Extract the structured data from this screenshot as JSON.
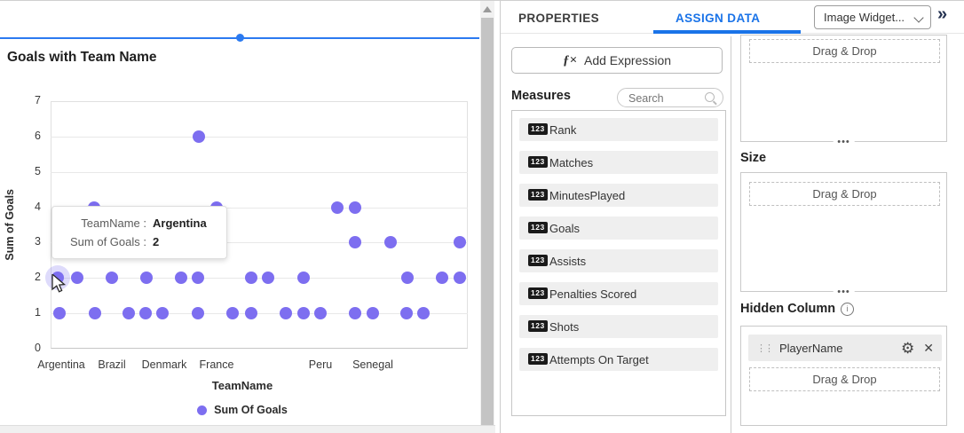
{
  "colors": {
    "accent_blue": "#1a73e8",
    "selection_blue": "#2b7af0",
    "point_purple": "#7d6ef0"
  },
  "chart_data": {
    "type": "scatter",
    "title": "Goals with Team Name",
    "xlabel": "TeamName",
    "ylabel": "Sum of Goals",
    "ylim": [
      0,
      7
    ],
    "yticks": [
      0,
      1,
      2,
      3,
      4,
      5,
      6,
      7
    ],
    "grid": "horizontal",
    "legend_position": "bottom",
    "legend": [
      {
        "label": "Sum Of Goals",
        "color": "#7d6ef0"
      }
    ],
    "x_axis_labels": [
      {
        "label": "Argentina",
        "px": 12
      },
      {
        "label": "Brazil",
        "px": 69
      },
      {
        "label": "Denmark",
        "px": 128
      },
      {
        "label": "France",
        "px": 187
      },
      {
        "label": "Peru",
        "px": 304
      },
      {
        "label": "Senegal",
        "px": 363
      }
    ],
    "points": [
      {
        "px": 167,
        "y": 6
      },
      {
        "px": 49,
        "y": 4
      },
      {
        "px": 187,
        "y": 4
      },
      {
        "px": 323,
        "y": 4
      },
      {
        "px": 343,
        "y": 4
      },
      {
        "px": 343,
        "y": 3
      },
      {
        "px": 383,
        "y": 3
      },
      {
        "px": 461,
        "y": 3
      },
      {
        "px": 8,
        "y": 2,
        "hovered": true
      },
      {
        "px": 30,
        "y": 2
      },
      {
        "px": 69,
        "y": 2
      },
      {
        "px": 108,
        "y": 2
      },
      {
        "px": 147,
        "y": 2
      },
      {
        "px": 166,
        "y": 2
      },
      {
        "px": 226,
        "y": 2
      },
      {
        "px": 245,
        "y": 2
      },
      {
        "px": 285,
        "y": 2
      },
      {
        "px": 402,
        "y": 2
      },
      {
        "px": 441,
        "y": 2
      },
      {
        "px": 461,
        "y": 2
      },
      {
        "px": 10,
        "y": 1
      },
      {
        "px": 50,
        "y": 1
      },
      {
        "px": 88,
        "y": 1
      },
      {
        "px": 107,
        "y": 1
      },
      {
        "px": 126,
        "y": 1
      },
      {
        "px": 166,
        "y": 1
      },
      {
        "px": 205,
        "y": 1
      },
      {
        "px": 226,
        "y": 1
      },
      {
        "px": 265,
        "y": 1
      },
      {
        "px": 285,
        "y": 1
      },
      {
        "px": 304,
        "y": 1
      },
      {
        "px": 343,
        "y": 1
      },
      {
        "px": 363,
        "y": 1
      },
      {
        "px": 401,
        "y": 1
      },
      {
        "px": 420,
        "y": 1
      }
    ]
  },
  "tooltip": {
    "rows": [
      {
        "label": "TeamName :",
        "value": "Argentina"
      },
      {
        "label": "Sum of Goals :",
        "value": "2"
      }
    ]
  },
  "right_panel": {
    "tabs": [
      {
        "label": "PROPERTIES",
        "active": false
      },
      {
        "label": "ASSIGN DATA",
        "active": true
      }
    ],
    "widget_dropdown": {
      "value": "Image Widget..."
    },
    "collapse_icon": "»",
    "fx_icon": "ƒ×",
    "add_expression_label": "Add Expression",
    "measures": {
      "heading": "Measures",
      "search_placeholder": "Search",
      "numeric_icon": "123",
      "items": [
        "Rank",
        "Matches",
        "MinutesPlayed",
        "Goals",
        "Assists",
        "Penalties Scored",
        "Shots",
        "Attempts On Target"
      ]
    },
    "value_section": {
      "dragdrop": "Drag & Drop",
      "dots": "•••"
    },
    "size_section": {
      "heading": "Size",
      "dragdrop": "Drag & Drop",
      "dots": "•••"
    },
    "hidden_column_section": {
      "heading": "Hidden Column",
      "info_icon": "i",
      "chip_label": "PlayerName",
      "drag_handle_icon": "⋮⋮",
      "gear_icon": "⚙",
      "close_icon": "✕",
      "dragdrop": "Drag & Drop"
    }
  }
}
